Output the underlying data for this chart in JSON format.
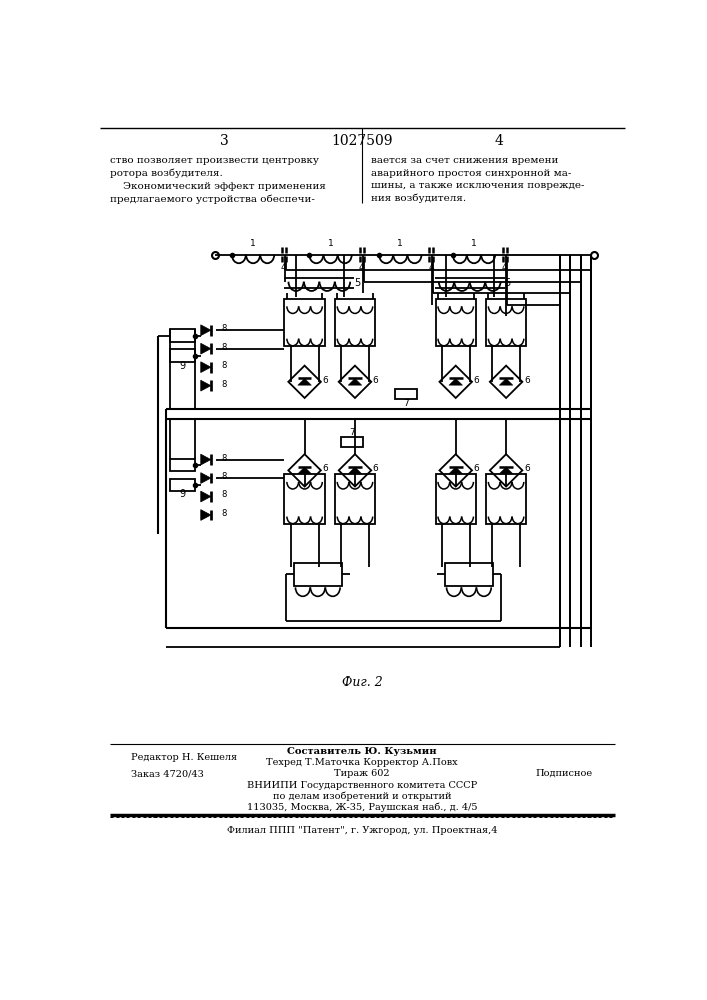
{
  "page_number_left": "3",
  "page_number_center": "1027509",
  "page_number_right": "4",
  "text_left": "ство позволяет произвести центровку\nротора возбудителя.\n    Экономический эффект применения\nпредлагаемого устройства обеспечи-",
  "text_right": "вается за счет снижения времени\nаварийного простоя синхронной ма-\nшины, а также исключения поврежде-\nния возбудителя.",
  "fig_label": "Фиг. 2",
  "footer_line1_left": "Редактор Н. Кешеля",
  "footer_line1_center": "Составитель Ю. Кузьмин",
  "footer_line2_center": "Техред Т.Маточка Корректор А.Повх",
  "footer_line3_left": "Заказ 4720/43",
  "footer_line3_center": "Тираж 602",
  "footer_line3_right": "Подписное",
  "footer_line4": "ВНИИПИ Государственного комитета СССР",
  "footer_line5": "по делам изобретений и открытий",
  "footer_line6": "113035, Москва, Ж-35, Раушская наб., д. 4/5",
  "footer_line7": "Филиал ППП \"Патент\", г. Ужгород, ул. Проектная,4",
  "bg_color": "#ffffff",
  "line_color": "#000000",
  "text_color": "#000000"
}
